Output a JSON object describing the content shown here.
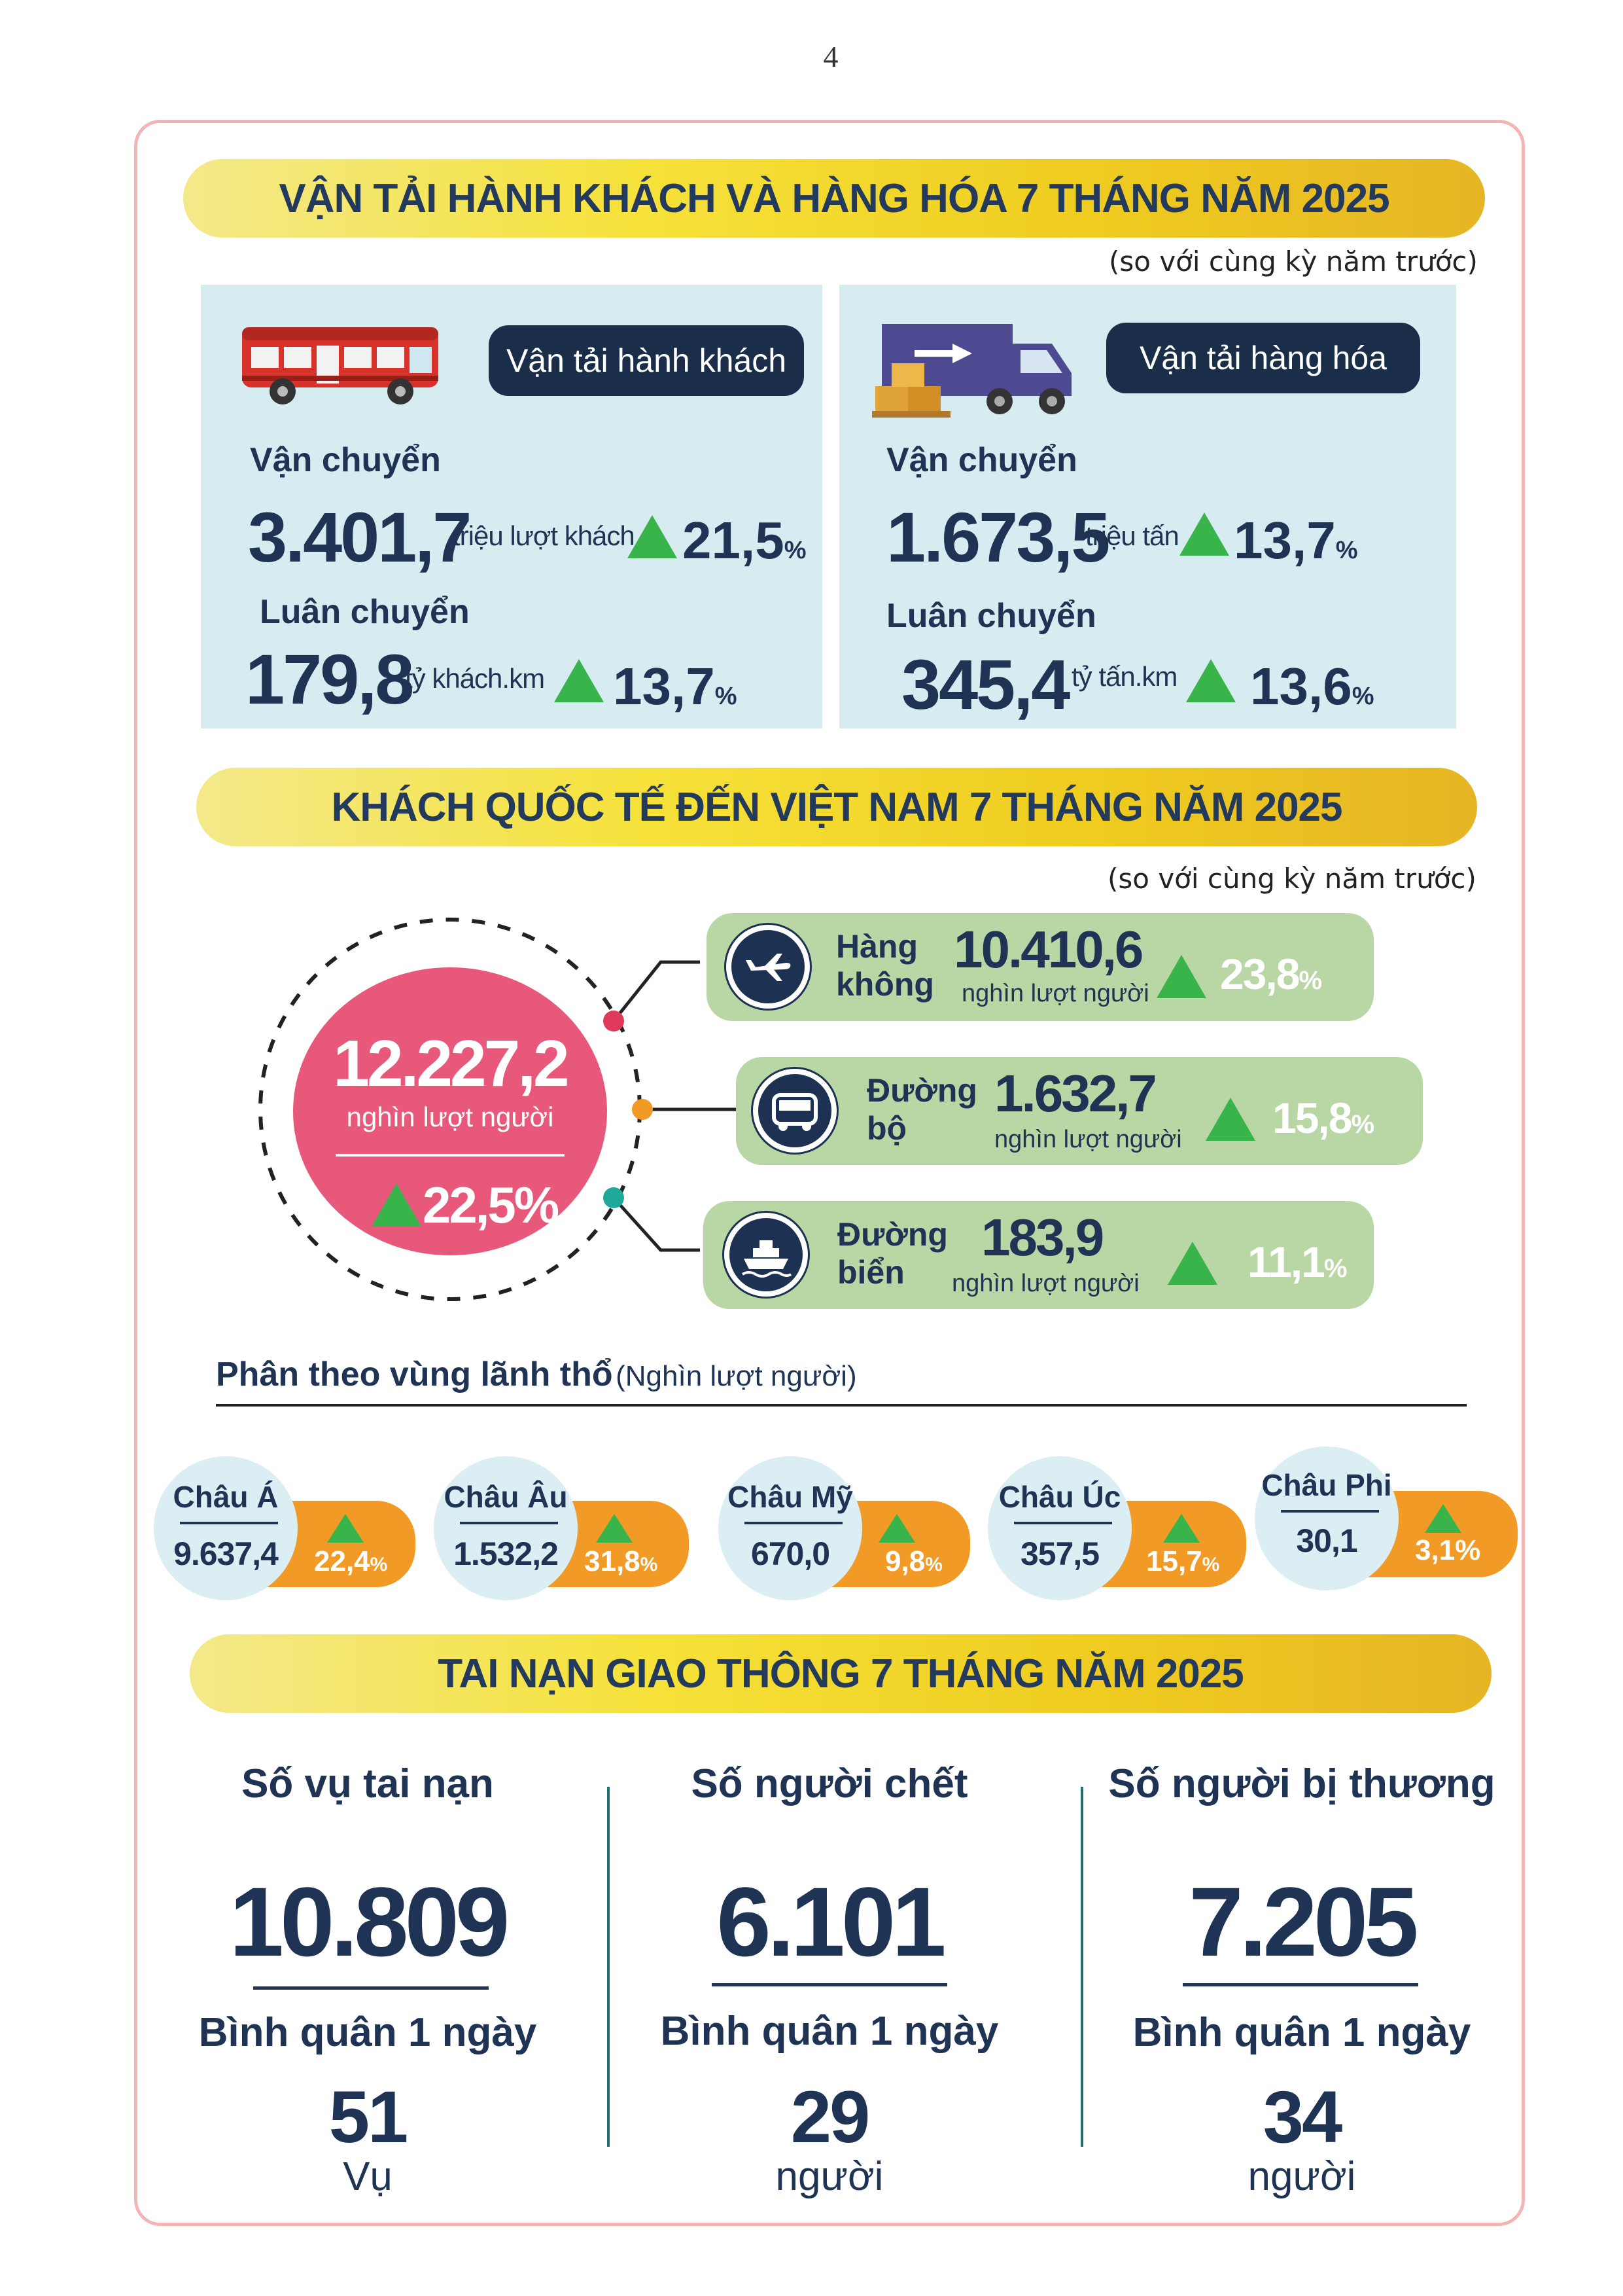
{
  "page_number": "4",
  "transport": {
    "banner": "VẬN TẢI HÀNH KHÁCH VÀ HÀNG HÓA 7 THÁNG NĂM 2025",
    "note": "(so với cùng kỳ năm trước)",
    "passenger": {
      "title": "Vận tải hành khách",
      "carry_label": "Vận chuyển",
      "carry_value": "3.401,7",
      "carry_unit": "triệu lượt khách",
      "carry_pct": "21,5",
      "rotate_label": "Luân chuyển",
      "rotate_value": "179,8",
      "rotate_unit": "tỷ khách.km",
      "rotate_pct": "13,7"
    },
    "cargo": {
      "title": "Vận tải hàng hóa",
      "carry_label": "Vận chuyển",
      "carry_value": "1.673,5",
      "carry_unit": "triệu tấn",
      "carry_pct": "13,7",
      "rotate_label": "Luân chuyển",
      "rotate_value": "345,4",
      "rotate_unit": "tỷ tấn.km",
      "rotate_pct": "13,6"
    },
    "percent_sign": "%"
  },
  "visitors": {
    "banner": "KHÁCH QUỐC TẾ ĐẾN VIỆT NAM 7 THÁNG NĂM 2025",
    "note": "(so với cùng kỳ năm trước)",
    "total_value": "12.227,2",
    "total_unit": "nghìn lượt người",
    "total_pct": "22,5%",
    "modes": [
      {
        "label_1": "Hàng",
        "label_2": "không",
        "value": "10.410,6",
        "unit": "nghìn lượt người",
        "pct": "23,8",
        "icon": "airplane-icon"
      },
      {
        "label_1": "Đường",
        "label_2": "bộ",
        "value": "1.632,7",
        "unit": "nghìn lượt người",
        "pct": "15,8",
        "icon": "bus-icon"
      },
      {
        "label_1": "Đường",
        "label_2": "biển",
        "value": "183,9",
        "unit": "nghìn lượt người",
        "pct": "11,1",
        "icon": "ship-icon"
      }
    ],
    "colors": {
      "total": "#e8587a",
      "air_dot": "#e03a5a",
      "road_dot": "#f29a26",
      "sea_dot": "#1fa99a",
      "card": "#b8d7a4",
      "up": "#39b44a"
    }
  },
  "regions": {
    "heading": "Phân theo vùng lãnh thổ",
    "heading_unit": "(Nghìn lượt người)",
    "items": [
      {
        "name": "Châu Á",
        "value": "9.637,4",
        "pct": "22,4",
        "sign": "%"
      },
      {
        "name": "Châu Âu",
        "value": "1.532,2",
        "pct": "31,8",
        "sign": "%"
      },
      {
        "name": "Châu Mỹ",
        "value": "670,0",
        "pct": "9,8",
        "sign": "%"
      },
      {
        "name": "Châu Úc",
        "value": "357,5",
        "pct": "15,7",
        "sign": "%"
      },
      {
        "name": "Châu Phi",
        "value": "30,1",
        "pct": "3,1%",
        "sign": ""
      }
    ]
  },
  "accidents": {
    "banner": "TAI NẠN GIAO THÔNG 7 THÁNG NĂM 2025",
    "items": [
      {
        "title": "Số vụ tai nạn",
        "value": "10.809",
        "avg_label": "Bình quân 1 ngày",
        "avg_value": "51",
        "avg_unit": "Vụ"
      },
      {
        "title": "Số người chết",
        "value": "6.101",
        "avg_label": "Bình quân 1 ngày",
        "avg_value": "29",
        "avg_unit": "người"
      },
      {
        "title": "Số người bị thương",
        "value": "7.205",
        "avg_label": "Bình quân 1 ngày",
        "avg_value": "34",
        "avg_unit": "người"
      }
    ]
  }
}
